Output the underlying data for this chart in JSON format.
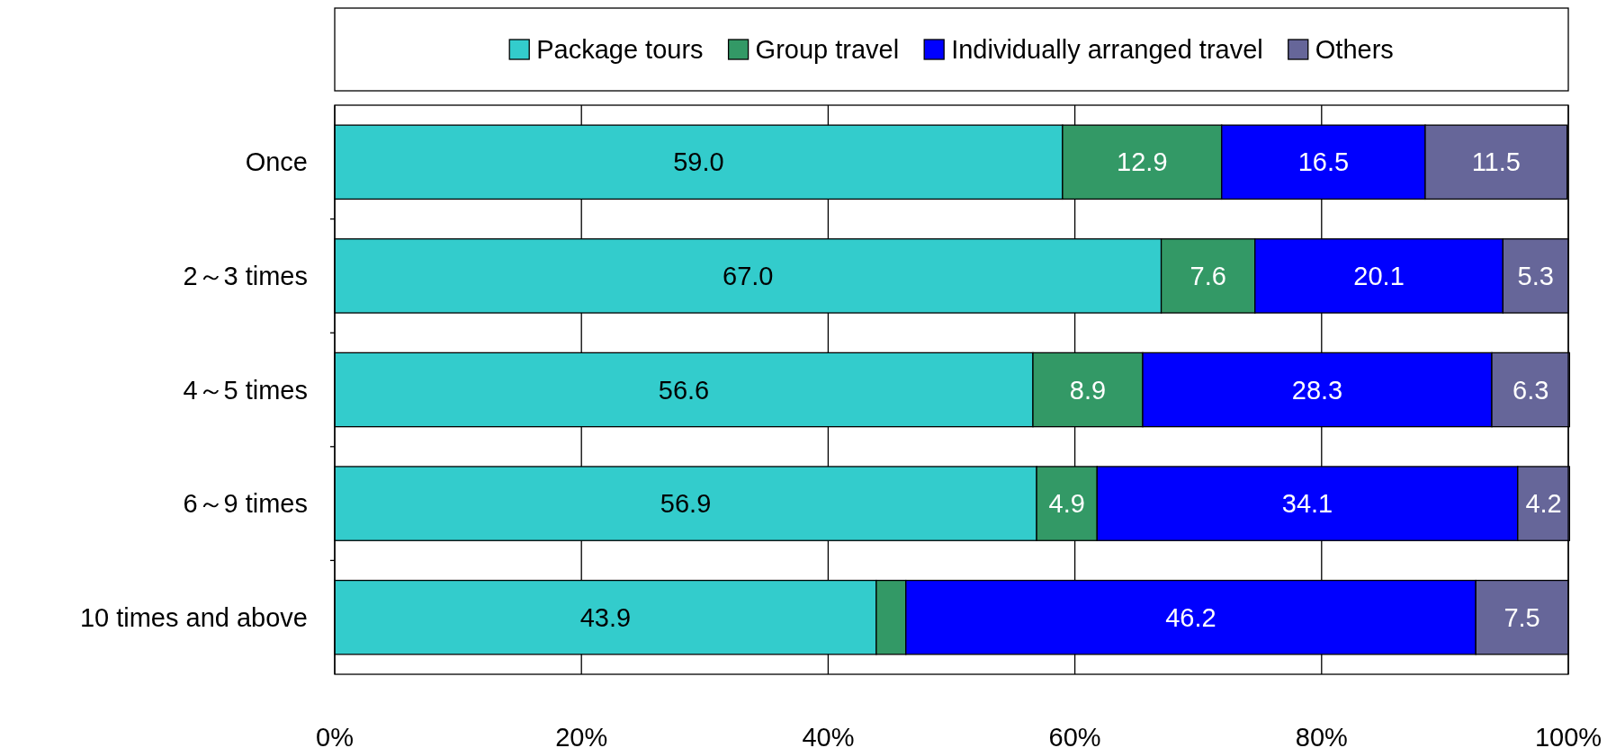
{
  "chart_data": {
    "type": "bar",
    "orientation": "horizontal",
    "stacked": true,
    "categories": [
      "Once",
      "2～3 times",
      "4～5 times",
      "6～9 times",
      "10 times and above"
    ],
    "series": [
      {
        "name": "Package tours",
        "color": "#33cccc",
        "values": [
          59.0,
          67.0,
          56.6,
          56.9,
          43.9
        ],
        "value_labels": [
          "59.0",
          "67.0",
          "56.6",
          "56.9",
          "43.9"
        ]
      },
      {
        "name": "Group travel",
        "color": "#339966",
        "values": [
          12.9,
          7.6,
          8.9,
          4.9,
          2.4
        ],
        "value_labels": [
          "12.9",
          "7.6",
          "8.9",
          "4.9",
          null
        ]
      },
      {
        "name": "Individually arranged travel",
        "color": "#0000ff",
        "values": [
          16.5,
          20.1,
          28.3,
          34.1,
          46.2
        ],
        "value_labels": [
          "16.5",
          "20.1",
          "28.3",
          "34.1",
          "46.2"
        ]
      },
      {
        "name": "Others",
        "color": "#666699",
        "values": [
          11.5,
          5.3,
          6.3,
          4.2,
          7.5
        ],
        "value_labels": [
          "11.5",
          "5.3",
          "6.3",
          "4.2",
          "7.5"
        ]
      }
    ],
    "xlim": [
      0,
      100
    ],
    "xticks": [
      {
        "value": 0,
        "label": "0%"
      },
      {
        "value": 20,
        "label": "20%"
      },
      {
        "value": 40,
        "label": "40%"
      },
      {
        "value": 60,
        "label": "60%"
      },
      {
        "value": 80,
        "label": "80%"
      },
      {
        "value": 100,
        "label": "100%"
      }
    ],
    "grid": "x",
    "legend": "top"
  }
}
